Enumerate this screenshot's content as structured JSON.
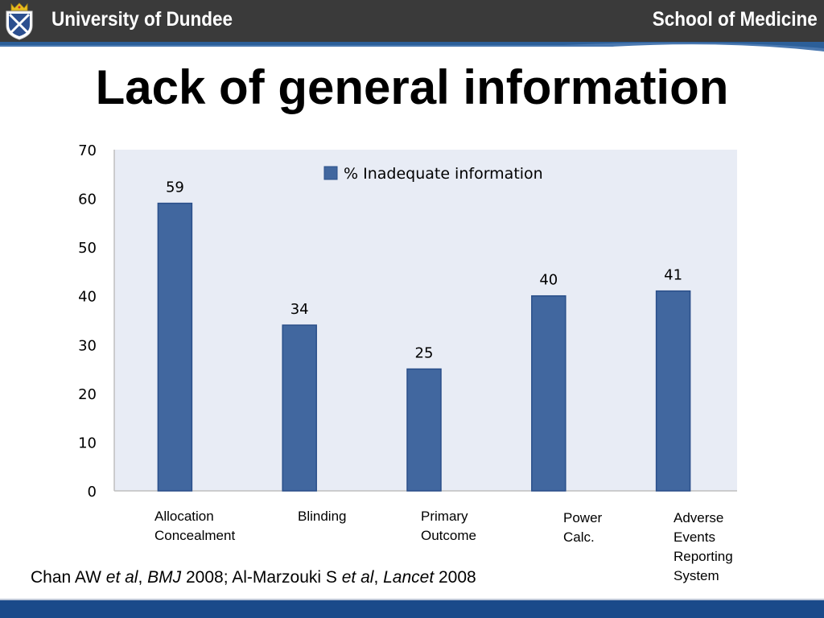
{
  "header": {
    "university": "University of Dundee",
    "school": "School of Medicine",
    "colors": {
      "bar": "#3a3a3a",
      "band": "#2c5f99",
      "footer": "#1a4a8a"
    },
    "logo_icon": "university-crest-icon"
  },
  "slide": {
    "title": "Lack of general information"
  },
  "chart_data": {
    "type": "bar",
    "categories": [
      "Allocation\nConcealment",
      "Blinding",
      "Primary\nOutcome",
      "Power\nCalc.",
      "Adverse\nEvents\nReporting\nSystem"
    ],
    "series": [
      {
        "name": "% Inadequate information",
        "values": [
          59,
          34,
          25,
          40,
          41
        ],
        "color": "#41679f"
      }
    ],
    "ylim": [
      0,
      70
    ],
    "yticks": [
      "0",
      "10",
      "20",
      "30",
      "40",
      "50",
      "60",
      "70"
    ],
    "data_labels": [
      "59",
      "34",
      "25",
      "40",
      "41"
    ],
    "plot_background": "#e8ecf5",
    "legend": "top-center",
    "grid": false,
    "title": "",
    "xlabel": "",
    "ylabel": ""
  },
  "citation": {
    "parts": [
      {
        "text": "Chan AW ",
        "italic": false
      },
      {
        "text": "et al",
        "italic": true
      },
      {
        "text": ", ",
        "italic": false
      },
      {
        "text": "BMJ",
        "italic": true
      },
      {
        "text": " 2008; Al-Marzouki S ",
        "italic": false
      },
      {
        "text": "et al",
        "italic": true
      },
      {
        "text": ", ",
        "italic": false
      },
      {
        "text": "Lancet",
        "italic": true
      },
      {
        "text": " 2008",
        "italic": false
      }
    ]
  }
}
